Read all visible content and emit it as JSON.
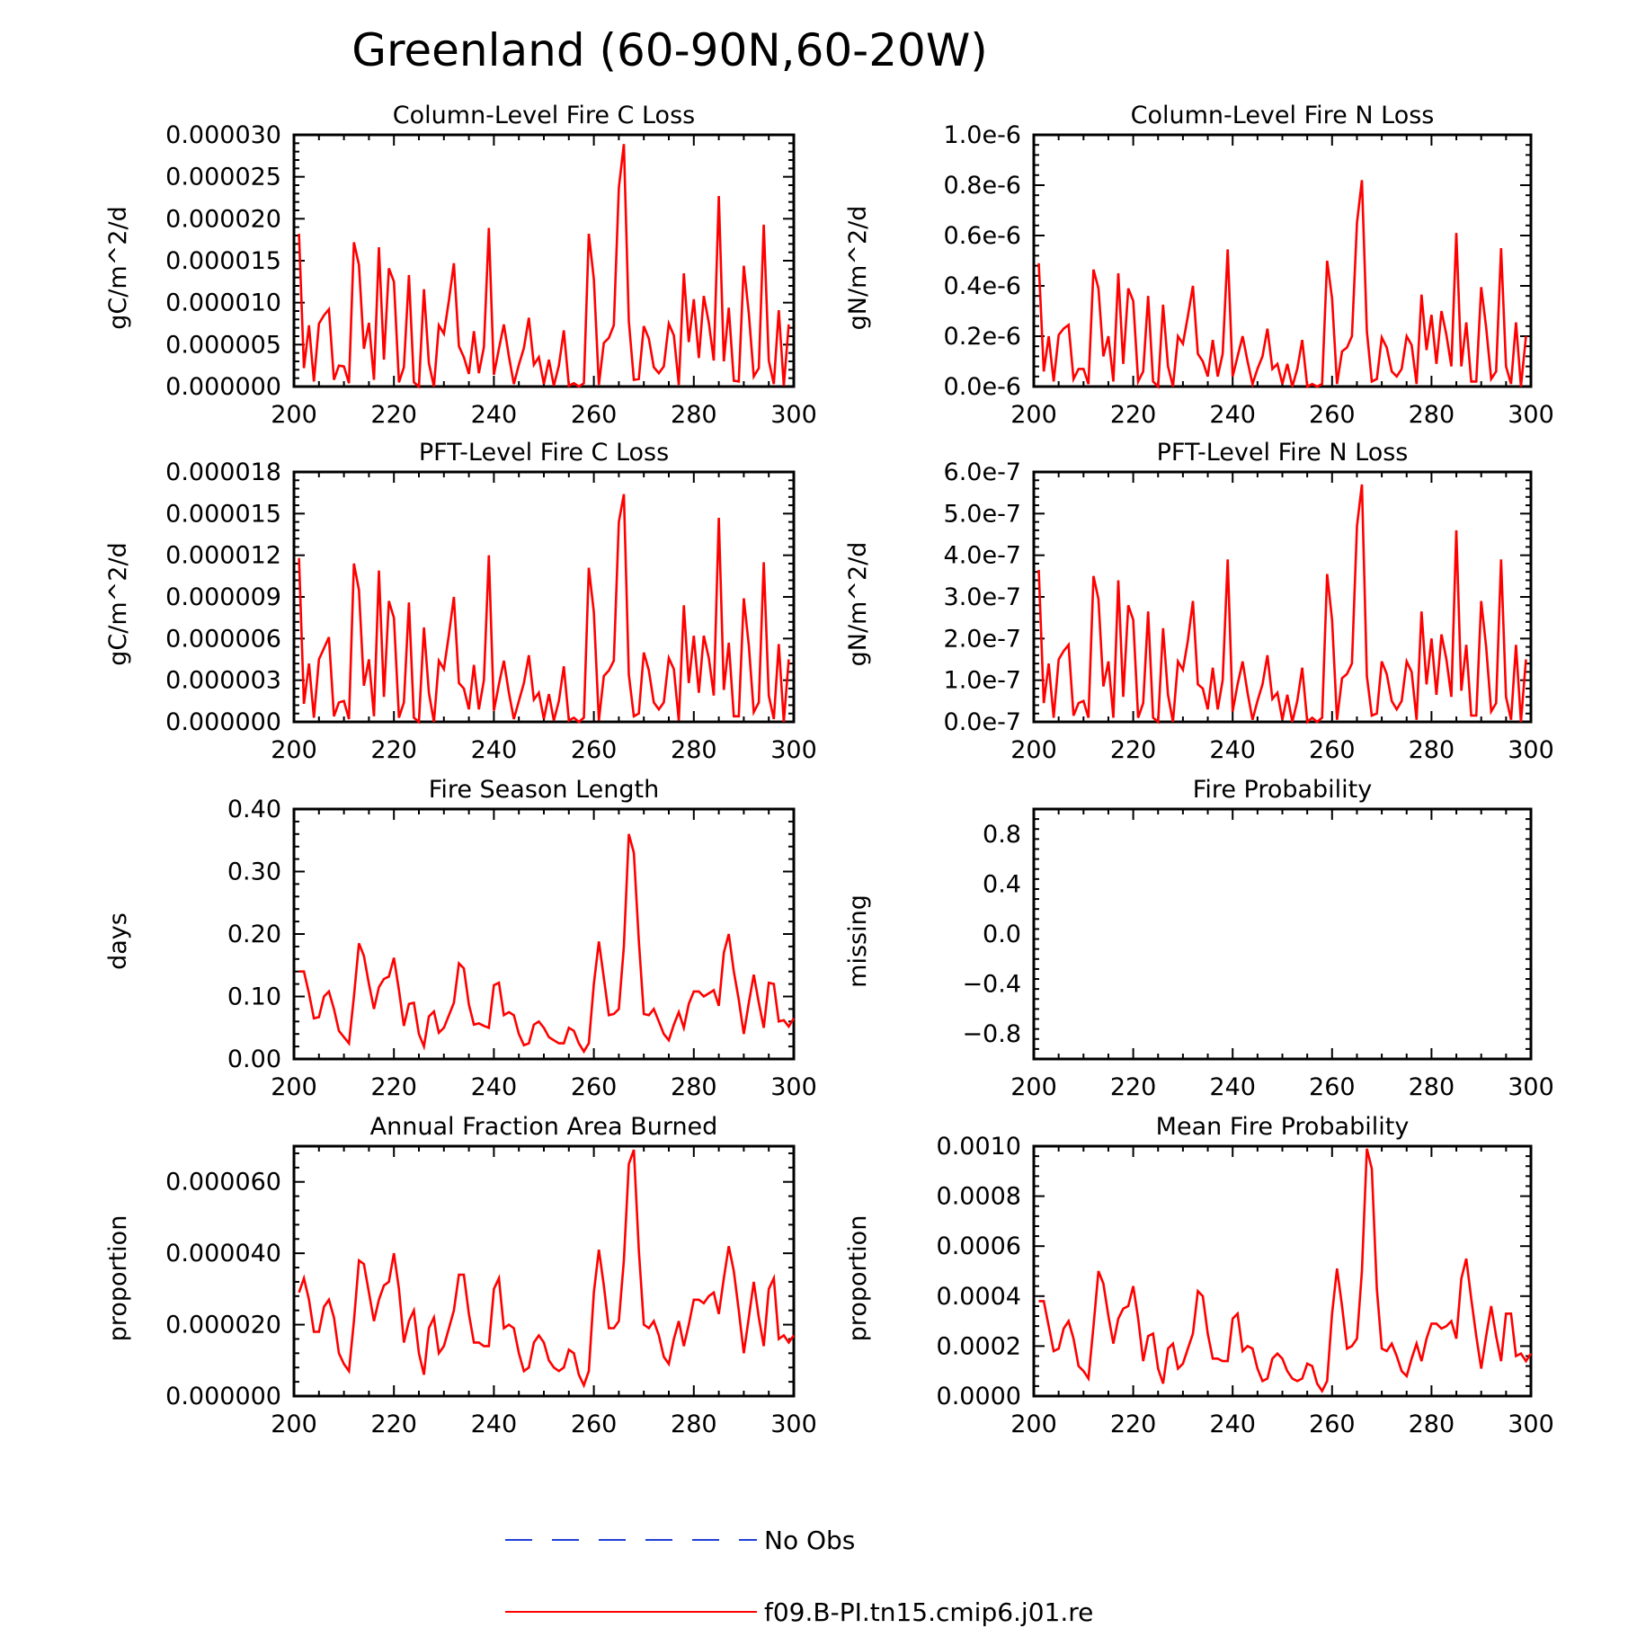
{
  "figure": {
    "title": "Greenland (60-90N,60-20W)"
  },
  "legend": {
    "items": [
      {
        "label": "No Obs",
        "color": "#1f3fd6",
        "style": "dashed"
      },
      {
        "label": "f09.B-PI.tn15.cmip6.j01.re",
        "color": "#ff0000",
        "style": "solid"
      }
    ]
  },
  "colors": {
    "series": "#ff0000",
    "obs": "#1f3fd6"
  },
  "chart_data": [
    {
      "type": "line",
      "title": "Column-Level Fire C Loss",
      "ylabel": "gC/m^2/d",
      "xlim": [
        200,
        300
      ],
      "ylim": [
        0,
        3e-05
      ],
      "xticks": [
        "200",
        "220",
        "240",
        "260",
        "280",
        "300"
      ],
      "yticks": [
        "0.000000",
        "0.000005",
        "0.000010",
        "0.000015",
        "0.000020",
        "0.000025",
        "0.000030"
      ],
      "x_start": 201,
      "series": [
        {
          "name": "f09.B-PI.tn15.cmip6.j01.re",
          "values": [
            1.82e-05,
            2.2e-06,
            7.3e-06,
            6e-07,
            7.5e-06,
            8.5e-06,
            9.2e-06,
            8e-07,
            2.5e-06,
            2.4e-06,
            4e-07,
            1.72e-05,
            1.45e-05,
            4.5e-06,
            7.6e-06,
            8e-07,
            1.66e-05,
            3.2e-06,
            1.41e-05,
            1.25e-05,
            5e-07,
            2.3e-06,
            1.33e-05,
            5e-07,
            0,
            1.16e-05,
            2.8e-06,
            0,
            7.3e-06,
            6.3e-06,
            1.03e-05,
            1.47e-05,
            4.8e-06,
            3.5e-06,
            1.5e-06,
            6.6e-06,
            1.6e-06,
            4.7e-06,
            1.89e-05,
            1.4e-06,
            4.5e-06,
            7.4e-06,
            3.6e-06,
            3e-07,
            2.6e-06,
            4.6e-06,
            8.2e-06,
            2.6e-06,
            3.5e-06,
            3e-07,
            3.2e-06,
            1e-07,
            2.5e-06,
            6.7e-06,
            1e-07,
            4e-07,
            0,
            4e-07,
            1.82e-05,
            1.28e-05,
            2e-07,
            5.2e-06,
            5.8e-06,
            7.3e-06,
            2.37e-05,
            2.89e-05,
            7.8e-06,
            8e-07,
            9e-07,
            7.2e-06,
            5.7e-06,
            2.3e-06,
            1.6e-06,
            2.4e-06,
            7.5e-06,
            6.1e-06,
            2e-07,
            1.35e-05,
            5.3e-06,
            1.04e-05,
            3.4e-06,
            1.08e-05,
            7.6e-06,
            3.1e-06,
            2.27e-05,
            3e-06,
            9.4e-06,
            7e-07,
            6e-07,
            1.44e-05,
            8.7e-06,
            1.2e-06,
            2.2e-06,
            1.93e-05,
            3.1e-06,
            3e-07,
            9.1e-06,
            1e-07,
            7.4e-06
          ]
        }
      ]
    },
    {
      "type": "line",
      "title": "Column-Level Fire N Loss",
      "ylabel": "gN/m^2/d",
      "xlim": [
        200,
        300
      ],
      "ylim": [
        0,
        1e-06
      ],
      "xticks": [
        "200",
        "220",
        "240",
        "260",
        "280",
        "300"
      ],
      "yticks": [
        "0.0e-6",
        "0.2e-6",
        "0.4e-6",
        "0.6e-6",
        "0.8e-6",
        "1.0e-6"
      ],
      "x_start": 201,
      "series": [
        {
          "name": "f09.B-PI.tn15.cmip6.j01.re",
          "values": [
            4.9e-07,
            6e-08,
            2e-07,
            2e-08,
            2.05e-07,
            2.3e-07,
            2.45e-07,
            3e-08,
            7e-08,
            7e-08,
            1e-08,
            4.65e-07,
            3.9e-07,
            1.2e-07,
            2e-07,
            2e-08,
            4.5e-07,
            9e-08,
            3.9e-07,
            3.4e-07,
            2e-08,
            6e-08,
            3.6e-07,
            2e-08,
            0,
            3.25e-07,
            8e-08,
            0,
            2e-07,
            1.7e-07,
            2.8e-07,
            4e-07,
            1.3e-07,
            1e-07,
            4e-08,
            1.85e-07,
            4e-08,
            1.3e-07,
            5.45e-07,
            4e-08,
            1.2e-07,
            2e-07,
            1e-07,
            1e-08,
            7e-08,
            1.2e-07,
            2.3e-07,
            7e-08,
            9e-08,
            1e-08,
            9e-08,
            0,
            7e-08,
            1.85e-07,
            0,
            1e-08,
            0,
            1e-08,
            5e-07,
            3.5e-07,
            1e-08,
            1.4e-07,
            1.55e-07,
            2e-07,
            6.5e-07,
            8.2e-07,
            2.2e-07,
            2e-08,
            3e-08,
            1.95e-07,
            1.55e-07,
            6e-08,
            4e-08,
            7e-08,
            2e-07,
            1.65e-07,
            1e-08,
            3.65e-07,
            1.45e-07,
            2.85e-07,
            9e-08,
            3e-07,
            2.05e-07,
            8e-08,
            6.1e-07,
            8e-08,
            2.55e-07,
            2e-08,
            2e-08,
            3.95e-07,
            2.35e-07,
            3e-08,
            6e-08,
            5.5e-07,
            8e-08,
            1e-08,
            2.55e-07,
            0,
            2e-07
          ]
        }
      ]
    },
    {
      "type": "line",
      "title": "PFT-Level Fire C Loss",
      "ylabel": "gC/m^2/d",
      "xlim": [
        200,
        300
      ],
      "ylim": [
        0,
        1.8e-05
      ],
      "xticks": [
        "200",
        "220",
        "240",
        "260",
        "280",
        "300"
      ],
      "yticks": [
        "0.000000",
        "0.000003",
        "0.000006",
        "0.000009",
        "0.000012",
        "0.000015",
        "0.000018"
      ],
      "x_start": 201,
      "series": [
        {
          "name": "f09.B-PI.tn15.cmip6.j01.re",
          "values": [
            1.18e-05,
            1.3e-06,
            4.2e-06,
            3e-07,
            4.5e-06,
            5.3e-06,
            6.1e-06,
            4e-07,
            1.4e-06,
            1.5e-06,
            2e-07,
            1.14e-05,
            9.5e-06,
            2.6e-06,
            4.5e-06,
            4e-07,
            1.09e-05,
            1.8e-06,
            8.7e-06,
            7.5e-06,
            3e-07,
            1.4e-06,
            8.6e-06,
            3e-07,
            0,
            6.8e-06,
            2.1e-06,
            0,
            4.4e-06,
            3.8e-06,
            6.3e-06,
            9e-06,
            2.8e-06,
            2.4e-06,
            9e-07,
            4.1e-06,
            9e-07,
            3e-06,
            1.2e-05,
            8e-07,
            2.7e-06,
            4.4e-06,
            2.1e-06,
            2e-07,
            1.5e-06,
            2.8e-06,
            4.8e-06,
            1.6e-06,
            2.1e-06,
            2e-07,
            2e-06,
            1e-07,
            1.5e-06,
            4e-06,
            1e-07,
            3e-07,
            0,
            3e-07,
            1.11e-05,
            7.9e-06,
            1e-07,
            3.3e-06,
            3.7e-06,
            4.4e-06,
            1.44e-05,
            1.64e-05,
            3.4e-06,
            4e-07,
            6e-07,
            5e-06,
            3.7e-06,
            1.4e-06,
            9e-07,
            1.4e-06,
            4.6e-06,
            3.8e-06,
            1e-07,
            8.4e-06,
            2.8e-06,
            6.2e-06,
            2.1e-06,
            6.2e-06,
            4.6e-06,
            1.9e-06,
            1.47e-05,
            2.3e-06,
            5.7e-06,
            4e-07,
            4e-07,
            8.9e-06,
            5.5e-06,
            7e-07,
            1.4e-06,
            1.15e-05,
            1.9e-06,
            2e-07,
            5.6e-06,
            0,
            4.5e-06
          ]
        }
      ]
    },
    {
      "type": "line",
      "title": "PFT-Level Fire N Loss",
      "ylabel": "gN/m^2/d",
      "xlim": [
        200,
        300
      ],
      "ylim": [
        0,
        6e-07
      ],
      "xticks": [
        "200",
        "220",
        "240",
        "260",
        "280",
        "300"
      ],
      "yticks": [
        "0.0e-7",
        "1.0e-7",
        "2.0e-7",
        "3.0e-7",
        "4.0e-7",
        "5.0e-7",
        "6.0e-7"
      ],
      "x_start": 201,
      "series": [
        {
          "name": "f09.B-PI.tn15.cmip6.j01.re",
          "values": [
            3.65e-07,
            4.5e-08,
            1.4e-07,
            1e-08,
            1.5e-07,
            1.7e-07,
            1.85e-07,
            1.5e-08,
            4.5e-08,
            5e-08,
            1e-08,
            3.5e-07,
            2.95e-07,
            8.5e-08,
            1.45e-07,
            1e-08,
            3.4e-07,
            6e-08,
            2.8e-07,
            2.45e-07,
            1e-08,
            4.5e-08,
            2.65e-07,
            1e-08,
            0,
            2.25e-07,
            6.5e-08,
            0,
            1.45e-07,
            1.25e-07,
            1.95e-07,
            2.9e-07,
            9e-08,
            8e-08,
            3e-08,
            1.3e-07,
            3e-08,
            1e-07,
            3.9e-07,
            2.5e-08,
            9e-08,
            1.45e-07,
            7e-08,
            5e-09,
            5e-08,
            9e-08,
            1.6e-07,
            5.5e-08,
            7e-08,
            5e-09,
            6.5e-08,
            0,
            5e-08,
            1.3e-07,
            0,
            1e-08,
            0,
            1e-08,
            3.55e-07,
            2.45e-07,
            5e-09,
            1.05e-07,
            1.15e-07,
            1.4e-07,
            4.7e-07,
            5.7e-07,
            1.1e-07,
            1.5e-08,
            2e-08,
            1.45e-07,
            1.15e-07,
            5e-08,
            3e-08,
            5e-08,
            1.45e-07,
            1.2e-07,
            5e-09,
            2.65e-07,
            9e-08,
            2e-07,
            6.5e-08,
            2.1e-07,
            1.5e-07,
            6e-08,
            4.6e-07,
            7.5e-08,
            1.85e-07,
            1.5e-08,
            1.5e-08,
            2.9e-07,
            1.8e-07,
            2.5e-08,
            4.5e-08,
            3.9e-07,
            6e-08,
            5e-09,
            1.85e-07,
            0,
            1.5e-07
          ]
        }
      ]
    },
    {
      "type": "line",
      "title": "Fire Season Length",
      "ylabel": "days",
      "xlim": [
        200,
        300
      ],
      "ylim": [
        0,
        0.4
      ],
      "xticks": [
        "200",
        "220",
        "240",
        "260",
        "280",
        "300"
      ],
      "yticks": [
        "0.00",
        "0.10",
        "0.20",
        "0.30",
        "0.40"
      ],
      "x_start": 201,
      "series": [
        {
          "name": "f09.B-PI.tn15.cmip6.j01.re",
          "values": [
            0.14,
            0.14,
            0.105,
            0.065,
            0.067,
            0.1,
            0.108,
            0.08,
            0.045,
            0.035,
            0.025,
            0.1,
            0.185,
            0.165,
            0.12,
            0.08,
            0.115,
            0.128,
            0.132,
            0.162,
            0.11,
            0.053,
            0.088,
            0.09,
            0.04,
            0.02,
            0.068,
            0.076,
            0.042,
            0.05,
            0.07,
            0.09,
            0.153,
            0.145,
            0.087,
            0.055,
            0.057,
            0.053,
            0.05,
            0.118,
            0.122,
            0.07,
            0.075,
            0.07,
            0.04,
            0.022,
            0.025,
            0.055,
            0.06,
            0.05,
            0.035,
            0.03,
            0.025,
            0.025,
            0.05,
            0.045,
            0.025,
            0.012,
            0.025,
            0.12,
            0.188,
            0.13,
            0.07,
            0.072,
            0.08,
            0.18,
            0.36,
            0.33,
            0.19,
            0.072,
            0.07,
            0.08,
            0.06,
            0.04,
            0.03,
            0.055,
            0.075,
            0.05,
            0.088,
            0.108,
            0.108,
            0.1,
            0.105,
            0.11,
            0.085,
            0.17,
            0.2,
            0.14,
            0.095,
            0.04,
            0.09,
            0.135,
            0.09,
            0.05,
            0.122,
            0.12,
            0.06,
            0.062,
            0.052,
            0.065
          ]
        }
      ]
    },
    {
      "type": "line",
      "title": "Fire Probability",
      "ylabel": "missing",
      "xlim": [
        200,
        300
      ],
      "ylim": [
        -1,
        1
      ],
      "xticks": [
        "200",
        "220",
        "240",
        "260",
        "280",
        "300"
      ],
      "yticks": [
        "−0.8",
        "−0.4",
        "0.0",
        "0.4",
        "0.8"
      ],
      "series": []
    },
    {
      "type": "line",
      "title": "Annual Fraction Area Burned",
      "ylabel": "proportion",
      "xlim": [
        200,
        300
      ],
      "ylim": [
        0,
        7e-05
      ],
      "xticks": [
        "200",
        "220",
        "240",
        "260",
        "280",
        "300"
      ],
      "yticks": [
        "0.000000",
        "0.000020",
        "0.000040",
        "0.000060"
      ],
      "x_start": 201,
      "series": [
        {
          "name": "f09.B-PI.tn15.cmip6.j01.re",
          "values": [
            2.9e-05,
            3.3e-05,
            2.7e-05,
            1.8e-05,
            1.8e-05,
            2.5e-05,
            2.7e-05,
            2.2e-05,
            1.2e-05,
            9e-06,
            7e-06,
            2.1e-05,
            3.8e-05,
            3.7e-05,
            2.9e-05,
            2.1e-05,
            2.7e-05,
            3.1e-05,
            3.2e-05,
            4e-05,
            3e-05,
            1.5e-05,
            2.1e-05,
            2.4e-05,
            1.2e-05,
            6e-06,
            1.9e-05,
            2.2e-05,
            1.2e-05,
            1.4e-05,
            1.9e-05,
            2.4e-05,
            3.4e-05,
            3.4e-05,
            2.3e-05,
            1.5e-05,
            1.5e-05,
            1.4e-05,
            1.4e-05,
            3e-05,
            3.3e-05,
            1.9e-05,
            2e-05,
            1.9e-05,
            1.2e-05,
            7e-06,
            8e-06,
            1.5e-05,
            1.7e-05,
            1.5e-05,
            1e-05,
            8e-06,
            7e-06,
            8e-06,
            1.3e-05,
            1.2e-05,
            6e-06,
            3e-06,
            7e-06,
            2.9e-05,
            4.1e-05,
            3.1e-05,
            1.9e-05,
            1.9e-05,
            2.1e-05,
            3.8e-05,
            6.5e-05,
            6.9e-05,
            4.1e-05,
            2e-05,
            1.9e-05,
            2.1e-05,
            1.7e-05,
            1.1e-05,
            9e-06,
            1.6e-05,
            2.1e-05,
            1.4e-05,
            2e-05,
            2.7e-05,
            2.7e-05,
            2.6e-05,
            2.8e-05,
            2.9e-05,
            2.3e-05,
            3.3e-05,
            4.2e-05,
            3.5e-05,
            2.4e-05,
            1.2e-05,
            2.2e-05,
            3.2e-05,
            2.2e-05,
            1.4e-05,
            3e-05,
            3.3e-05,
            1.6e-05,
            1.7e-05,
            1.5e-05,
            1.7e-05
          ]
        }
      ]
    },
    {
      "type": "line",
      "title": "Mean Fire Probability",
      "ylabel": "proportion",
      "xlim": [
        200,
        300
      ],
      "ylim": [
        0,
        0.001
      ],
      "xticks": [
        "200",
        "220",
        "240",
        "260",
        "280",
        "300"
      ],
      "yticks": [
        "0.0000",
        "0.0002",
        "0.0004",
        "0.0006",
        "0.0008",
        "0.0010"
      ],
      "x_start": 201,
      "series": [
        {
          "name": "f09.B-PI.tn15.cmip6.j01.re",
          "values": [
            0.00038,
            0.00038,
            0.00028,
            0.00018,
            0.00019,
            0.00027,
            0.0003,
            0.00023,
            0.00012,
            0.0001,
            7e-05,
            0.00028,
            0.0005,
            0.00045,
            0.00032,
            0.00021,
            0.00031,
            0.00035,
            0.00036,
            0.00044,
            0.00031,
            0.00014,
            0.00024,
            0.00025,
            0.00011,
            5e-05,
            0.00019,
            0.00021,
            0.00011,
            0.00013,
            0.00019,
            0.00025,
            0.00042,
            0.0004,
            0.00025,
            0.00015,
            0.00015,
            0.00014,
            0.00014,
            0.00031,
            0.00033,
            0.00018,
            0.0002,
            0.00019,
            0.00011,
            6e-05,
            7e-05,
            0.00015,
            0.00017,
            0.00015,
            0.0001,
            7e-05,
            6e-05,
            7e-05,
            0.00013,
            0.00012,
            5e-05,
            2e-05,
            6e-05,
            0.00033,
            0.00051,
            0.00036,
            0.00019,
            0.0002,
            0.00023,
            0.0005,
            0.00099,
            0.00091,
            0.00043,
            0.00019,
            0.00018,
            0.00021,
            0.00016,
            0.0001,
            8e-05,
            0.00015,
            0.00021,
            0.00014,
            0.00023,
            0.00029,
            0.00029,
            0.00027,
            0.00028,
            0.0003,
            0.00023,
            0.00047,
            0.00055,
            0.00039,
            0.00024,
            0.00011,
            0.00024,
            0.00036,
            0.00024,
            0.00014,
            0.00033,
            0.00033,
            0.00016,
            0.00017,
            0.00014,
            0.00017
          ]
        }
      ]
    }
  ]
}
